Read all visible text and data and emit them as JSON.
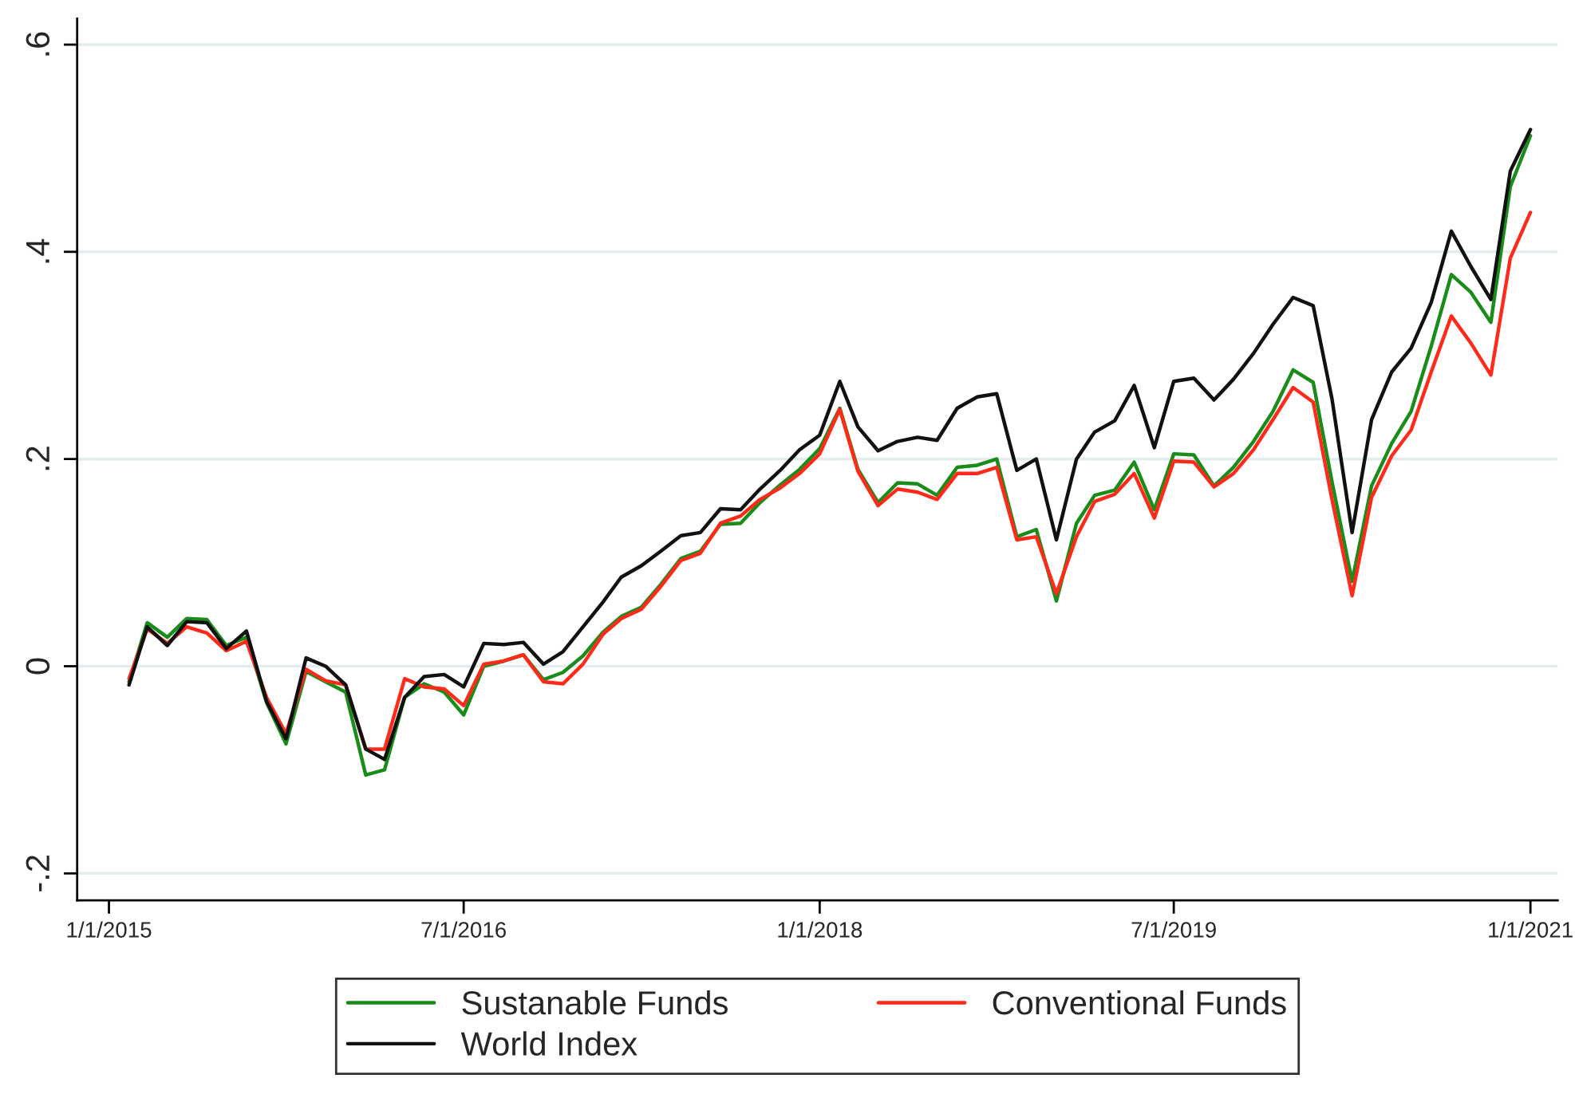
{
  "chart_data": {
    "type": "line",
    "x": [
      "2015-02-01",
      "2015-03-01",
      "2015-04-01",
      "2015-05-01",
      "2015-06-01",
      "2015-07-01",
      "2015-08-01",
      "2015-09-01",
      "2015-10-01",
      "2015-11-01",
      "2015-12-01",
      "2016-01-01",
      "2016-02-01",
      "2016-03-01",
      "2016-04-01",
      "2016-05-01",
      "2016-06-01",
      "2016-07-01",
      "2016-08-01",
      "2016-09-01",
      "2016-10-01",
      "2016-11-01",
      "2016-12-01",
      "2017-01-01",
      "2017-02-01",
      "2017-03-01",
      "2017-04-01",
      "2017-05-01",
      "2017-06-01",
      "2017-07-01",
      "2017-08-01",
      "2017-09-01",
      "2017-10-01",
      "2017-11-01",
      "2017-12-01",
      "2018-01-01",
      "2018-02-01",
      "2018-03-01",
      "2018-04-01",
      "2018-05-01",
      "2018-06-01",
      "2018-07-01",
      "2018-08-01",
      "2018-09-01",
      "2018-10-01",
      "2018-11-01",
      "2018-12-01",
      "2019-01-01",
      "2019-02-01",
      "2019-03-01",
      "2019-04-01",
      "2019-05-01",
      "2019-06-01",
      "2019-07-01",
      "2019-08-01",
      "2019-09-01",
      "2019-10-01",
      "2019-11-01",
      "2019-12-01",
      "2020-01-01",
      "2020-02-01",
      "2020-03-01",
      "2020-04-01",
      "2020-05-01",
      "2020-06-01",
      "2020-07-01",
      "2020-08-01",
      "2020-09-01",
      "2020-10-01",
      "2020-11-01",
      "2020-12-01",
      "2021-01-01"
    ],
    "series": [
      {
        "name": "Sustanable Funds",
        "color": "#1a8c1a",
        "values": [
          -0.015,
          0.042,
          0.028,
          0.046,
          0.045,
          0.02,
          0.028,
          -0.035,
          -0.075,
          -0.005,
          -0.015,
          -0.025,
          -0.105,
          -0.1,
          -0.03,
          -0.017,
          -0.025,
          -0.047,
          0.0,
          0.005,
          0.011,
          -0.013,
          -0.006,
          0.01,
          0.033,
          0.048,
          0.057,
          0.079,
          0.104,
          0.111,
          0.137,
          0.138,
          0.158,
          0.175,
          0.19,
          0.21,
          0.249,
          0.19,
          0.158,
          0.177,
          0.176,
          0.165,
          0.192,
          0.194,
          0.2,
          0.125,
          0.132,
          0.063,
          0.138,
          0.165,
          0.17,
          0.197,
          0.151,
          0.205,
          0.204,
          0.174,
          0.192,
          0.217,
          0.246,
          0.286,
          0.274,
          0.178,
          0.082,
          0.174,
          0.215,
          0.246,
          0.309,
          0.378,
          0.361,
          0.332,
          0.463,
          0.512
        ]
      },
      {
        "name": "Conventional Funds",
        "color": "#ff2a1a",
        "values": [
          -0.012,
          0.036,
          0.022,
          0.038,
          0.032,
          0.015,
          0.024,
          -0.03,
          -0.065,
          -0.003,
          -0.014,
          -0.018,
          -0.08,
          -0.08,
          -0.012,
          -0.02,
          -0.022,
          -0.038,
          0.002,
          0.005,
          0.011,
          -0.015,
          -0.017,
          0.002,
          0.031,
          0.046,
          0.055,
          0.077,
          0.102,
          0.109,
          0.138,
          0.145,
          0.161,
          0.172,
          0.186,
          0.205,
          0.248,
          0.188,
          0.155,
          0.171,
          0.168,
          0.161,
          0.186,
          0.186,
          0.192,
          0.122,
          0.125,
          0.07,
          0.125,
          0.159,
          0.166,
          0.186,
          0.143,
          0.198,
          0.197,
          0.173,
          0.186,
          0.209,
          0.238,
          0.269,
          0.255,
          0.161,
          0.068,
          0.163,
          0.203,
          0.228,
          0.284,
          0.338,
          0.312,
          0.281,
          0.394,
          0.438
        ]
      },
      {
        "name": "World Index",
        "color": "#111111",
        "values": [
          -0.018,
          0.038,
          0.02,
          0.043,
          0.042,
          0.017,
          0.034,
          -0.034,
          -0.07,
          0.008,
          0.0,
          -0.018,
          -0.08,
          -0.09,
          -0.03,
          -0.01,
          -0.008,
          -0.02,
          0.022,
          0.021,
          0.023,
          0.002,
          0.014,
          0.038,
          0.062,
          0.086,
          0.097,
          0.111,
          0.126,
          0.129,
          0.152,
          0.151,
          0.171,
          0.189,
          0.209,
          0.223,
          0.275,
          0.231,
          0.208,
          0.217,
          0.221,
          0.218,
          0.249,
          0.26,
          0.263,
          0.189,
          0.2,
          0.122,
          0.2,
          0.226,
          0.237,
          0.271,
          0.211,
          0.275,
          0.278,
          0.257,
          0.277,
          0.302,
          0.33,
          0.356,
          0.348,
          0.258,
          0.129,
          0.238,
          0.284,
          0.307,
          0.351,
          0.42,
          0.386,
          0.354,
          0.478,
          0.518
        ]
      }
    ],
    "xlim": [
      "2014-11-13",
      "2021-02-12"
    ],
    "xticks": [
      {
        "value": "2015-01-01",
        "label": "1/1/2015"
      },
      {
        "value": "2016-07-01",
        "label": "7/1/2016"
      },
      {
        "value": "2018-01-01",
        "label": "1/1/2018"
      },
      {
        "value": "2019-07-01",
        "label": "7/1/2019"
      },
      {
        "value": "2021-01-01",
        "label": "1/1/2021"
      }
    ],
    "ylim": [
      -0.226,
      0.625
    ],
    "yticks": [
      {
        "value": -0.2,
        "label": "-.2"
      },
      {
        "value": 0,
        "label": "0"
      },
      {
        "value": 0.2,
        "label": ".2"
      },
      {
        "value": 0.4,
        "label": ".4"
      },
      {
        "value": 0.6,
        "label": ".6"
      }
    ],
    "grid": "y",
    "legend": "bottom",
    "marker": "none",
    "line_style": "solid"
  }
}
